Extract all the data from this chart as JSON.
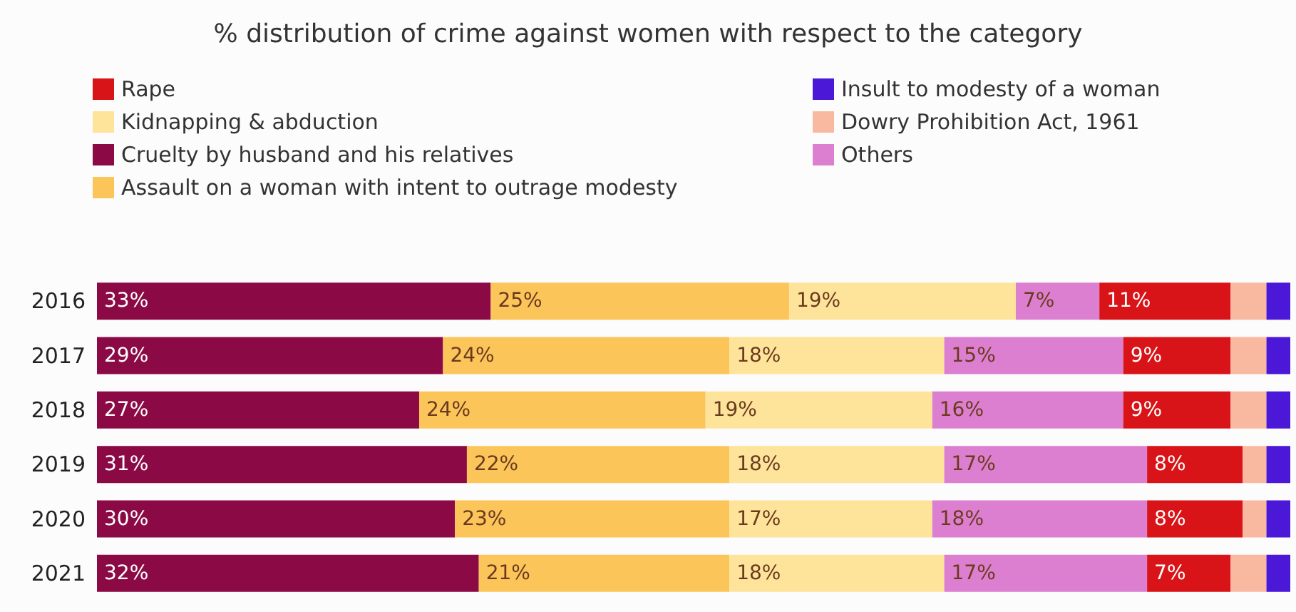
{
  "chart_data": {
    "type": "bar",
    "orientation": "horizontal",
    "stacked": true,
    "title": "% distribution of crime against women with respect to the category",
    "categories": [
      "2016",
      "2017",
      "2018",
      "2019",
      "2020",
      "2021"
    ],
    "xlim": [
      0,
      100
    ],
    "tick_labels": "y",
    "legend": "top",
    "series": [
      {
        "name": "Cruelty by husband and his relatives",
        "color": "#8b0a45",
        "values": [
          33,
          29,
          27,
          31,
          30,
          32
        ],
        "value_labels": [
          "33%",
          "29%",
          "27%",
          "31%",
          "30%",
          "32%"
        ]
      },
      {
        "name": "Assault on a woman with intent to outrage modesty",
        "color": "#fbc55a",
        "values": [
          25,
          24,
          24,
          22,
          23,
          21
        ],
        "value_labels": [
          "25%",
          "24%",
          "24%",
          "22%",
          "23%",
          "21%"
        ]
      },
      {
        "name": "Kidnapping & abduction",
        "color": "#fde49a",
        "values": [
          19,
          18,
          19,
          18,
          17,
          18
        ],
        "value_labels": [
          "19%",
          "18%",
          "19%",
          "18%",
          "17%",
          "18%"
        ]
      },
      {
        "name": "Others",
        "color": "#dd7fd0",
        "values": [
          7,
          15,
          16,
          17,
          18,
          17
        ],
        "value_labels": [
          "7%",
          "15%",
          "16%",
          "17%",
          "18%",
          "17%"
        ]
      },
      {
        "name": "Rape",
        "color": "#d81418",
        "values": [
          11,
          9,
          9,
          8,
          8,
          7
        ],
        "value_labels": [
          "11%",
          "9%",
          "9%",
          "8%",
          "8%",
          "7%"
        ]
      },
      {
        "name": "Dowry Prohibition Act, 1961",
        "color": "#f9b9a0",
        "values": [
          3,
          3,
          3,
          2,
          2,
          3
        ],
        "value_labels": [
          null,
          null,
          null,
          null,
          null,
          null
        ]
      },
      {
        "name": "Insult to modesty of a woman",
        "color": "#4a18d6",
        "values": [
          2,
          2,
          2,
          2,
          2,
          2
        ],
        "value_labels": [
          null,
          null,
          null,
          null,
          null,
          null
        ]
      }
    ]
  }
}
